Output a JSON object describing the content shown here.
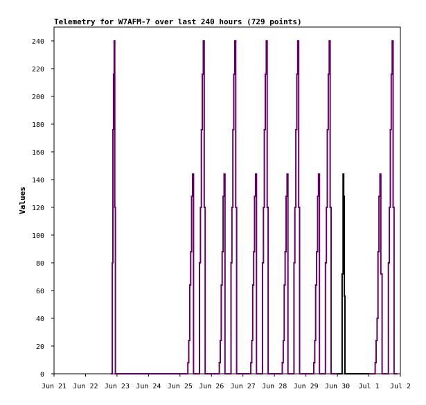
{
  "chart_data": {
    "type": "line",
    "title": "Telemetry for W7AFM-7 over last 240 hours (729 points)",
    "ylabel": "Values",
    "xlabel": "",
    "ylim": [
      0,
      250
    ],
    "yticks": [
      0,
      20,
      40,
      60,
      80,
      100,
      120,
      140,
      160,
      180,
      200,
      220,
      240
    ],
    "x_axis_unit": "days after Jun 21",
    "xlim": [
      0,
      11
    ],
    "xticks": [
      {
        "x": 0,
        "label": "Jun 21"
      },
      {
        "x": 1,
        "label": "Jun 22"
      },
      {
        "x": 2,
        "label": "Jun 23"
      },
      {
        "x": 3,
        "label": "Jun 24"
      },
      {
        "x": 4,
        "label": "Jun 25"
      },
      {
        "x": 5,
        "label": "Jun 26"
      },
      {
        "x": 6,
        "label": "Jun 27"
      },
      {
        "x": 7,
        "label": "Jun 28"
      },
      {
        "x": 8,
        "label": "Jun 29"
      },
      {
        "x": 9,
        "label": "Jun 30"
      },
      {
        "x": 10,
        "label": "Jul 1"
      },
      {
        "x": 11,
        "label": "Jul 2"
      }
    ],
    "grid": false,
    "series": [
      {
        "color": "#660066",
        "x": [
          1.8,
          1.85,
          1.85,
          1.87,
          1.87,
          1.89,
          1.89,
          1.91,
          1.91,
          1.93,
          1.93,
          1.95,
          1.95,
          1.97,
          1.97,
          2.2,
          4.2,
          4.25,
          4.25,
          4.28,
          4.28,
          4.31,
          4.31,
          4.34,
          4.34,
          4.37,
          4.37,
          4.4,
          4.4,
          4.43,
          4.43,
          4.62,
          4.62,
          4.65,
          4.65,
          4.68,
          4.68,
          4.71,
          4.71,
          4.74,
          4.74,
          4.77,
          4.77,
          4.8,
          4.8,
          5.2,
          5.25,
          5.25,
          5.28,
          5.28,
          5.31,
          5.31,
          5.34,
          5.34,
          5.37,
          5.37,
          5.4,
          5.4,
          5.43,
          5.43,
          5.62,
          5.62,
          5.65,
          5.65,
          5.68,
          5.68,
          5.71,
          5.71,
          5.74,
          5.74,
          5.77,
          5.77,
          5.8,
          5.8,
          6.2,
          6.25,
          6.25,
          6.28,
          6.28,
          6.31,
          6.31,
          6.34,
          6.34,
          6.37,
          6.37,
          6.4,
          6.4,
          6.43,
          6.43,
          6.62,
          6.62,
          6.65,
          6.65,
          6.68,
          6.68,
          6.71,
          6.71,
          6.74,
          6.74,
          6.77,
          6.77,
          6.8,
          6.8,
          7.2,
          7.25,
          7.25,
          7.28,
          7.28,
          7.31,
          7.31,
          7.34,
          7.34,
          7.37,
          7.37,
          7.4,
          7.4,
          7.43,
          7.43,
          7.62,
          7.62,
          7.65,
          7.65,
          7.68,
          7.68,
          7.71,
          7.71,
          7.74,
          7.74,
          7.77,
          7.77,
          7.8,
          7.8,
          8.2,
          8.25,
          8.25,
          8.28,
          8.28,
          8.31,
          8.31,
          8.34,
          8.34,
          8.37,
          8.37,
          8.4,
          8.4,
          8.43,
          8.43,
          8.62,
          8.62,
          8.65,
          8.65,
          8.68,
          8.68,
          8.71,
          8.71,
          8.74,
          8.74,
          8.77,
          8.77,
          8.8,
          8.8,
          9.0
        ],
        "values": [
          0,
          0,
          80,
          80,
          176,
          176,
          216,
          216,
          240,
          240,
          120,
          120,
          0,
          0,
          0,
          0,
          0,
          0,
          8,
          8,
          24,
          24,
          64,
          64,
          88,
          88,
          128,
          128,
          144,
          144,
          0,
          0,
          80,
          80,
          120,
          120,
          176,
          176,
          216,
          216,
          240,
          240,
          120,
          120,
          0,
          0,
          0,
          8,
          8,
          24,
          24,
          64,
          64,
          88,
          88,
          128,
          128,
          144,
          144,
          0,
          0,
          80,
          80,
          120,
          120,
          176,
          176,
          216,
          216,
          240,
          240,
          120,
          120,
          0,
          0,
          0,
          8,
          8,
          24,
          24,
          64,
          64,
          88,
          88,
          128,
          128,
          144,
          144,
          0,
          0,
          80,
          80,
          120,
          120,
          176,
          176,
          216,
          216,
          240,
          240,
          120,
          120,
          0,
          0,
          0,
          8,
          8,
          24,
          24,
          64,
          64,
          88,
          88,
          128,
          128,
          144,
          144,
          0,
          0,
          80,
          80,
          120,
          120,
          176,
          176,
          216,
          216,
          240,
          240,
          120,
          120,
          0,
          0,
          0,
          8,
          8,
          24,
          24,
          64,
          64,
          88,
          88,
          128,
          128,
          144,
          144,
          0,
          0,
          80,
          80,
          120,
          120,
          176,
          176,
          216,
          216,
          240,
          240,
          120,
          120,
          0,
          0
        ]
      },
      {
        "color": "#000000",
        "x": [
          9.0,
          9.15,
          9.15,
          9.18,
          9.18,
          9.2,
          9.2,
          9.22,
          9.22,
          9.24,
          9.24,
          10.0
        ],
        "values": [
          0,
          0,
          72,
          72,
          144,
          144,
          128,
          128,
          56,
          56,
          0,
          0
        ]
      },
      {
        "color": "#660066",
        "x": [
          10.0,
          10.2,
          10.2,
          10.23,
          10.23,
          10.26,
          10.26,
          10.29,
          10.29,
          10.32,
          10.32,
          10.35,
          10.35,
          10.38,
          10.38,
          10.42,
          10.42,
          10.62,
          10.62,
          10.65,
          10.65,
          10.68,
          10.68,
          10.71,
          10.71,
          10.74,
          10.74,
          10.77,
          10.77,
          10.8,
          10.8,
          10.9
        ],
        "values": [
          0,
          0,
          8,
          8,
          24,
          24,
          40,
          40,
          88,
          88,
          128,
          128,
          144,
          144,
          72,
          72,
          0,
          0,
          80,
          80,
          120,
          120,
          176,
          176,
          216,
          216,
          240,
          240,
          120,
          120,
          0,
          0
        ]
      }
    ]
  }
}
